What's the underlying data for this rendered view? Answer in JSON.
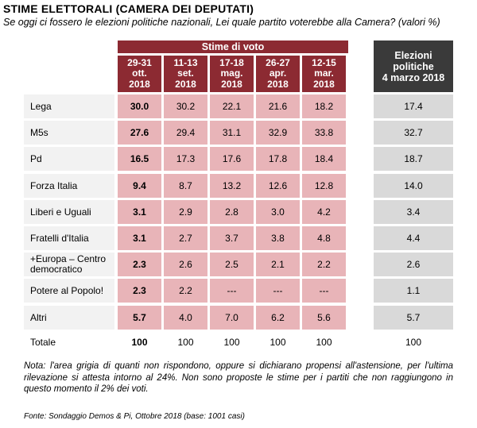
{
  "title": "STIME ELETTORALI (CAMERA DEI DEPUTATI)",
  "question": "Se oggi ci fossero le elezioni politiche nazionali, Lei quale partito voterebbe alla Camera?  (valori %)",
  "group_header": "Stime di voto",
  "columns": [
    [
      "29-31",
      "ott.",
      "2018"
    ],
    [
      "11-13",
      "set.",
      "2018"
    ],
    [
      "17-18",
      "mag.",
      "2018"
    ],
    [
      "26-27",
      "apr.",
      "2018"
    ],
    [
      "12-15",
      "mar.",
      "2018"
    ]
  ],
  "elections_header": [
    "Elezioni",
    "politiche",
    "4 marzo 2018"
  ],
  "rows": [
    {
      "label": "Lega",
      "values": [
        "30.0",
        "30.2",
        "22.1",
        "21.6",
        "18.2"
      ],
      "elections": "17.4"
    },
    {
      "label": "M5s",
      "values": [
        "27.6",
        "29.4",
        "31.1",
        "32.9",
        "33.8"
      ],
      "elections": "32.7"
    },
    {
      "label": "Pd",
      "values": [
        "16.5",
        "17.3",
        "17.6",
        "17.8",
        "18.4"
      ],
      "elections": "18.7"
    },
    {
      "label": "Forza Italia",
      "values": [
        "9.4",
        "8.7",
        "13.2",
        "12.6",
        "12.8"
      ],
      "elections": "14.0"
    },
    {
      "label": "Liberi e Uguali",
      "values": [
        "3.1",
        "2.9",
        "2.8",
        "3.0",
        "4.2"
      ],
      "elections": "3.4"
    },
    {
      "label": "Fratelli d'Italia",
      "values": [
        "3.1",
        "2.7",
        "3.7",
        "3.8",
        "4.8"
      ],
      "elections": "4.4"
    },
    {
      "label": "+Europa – Centro democratico",
      "values": [
        "2.3",
        "2.6",
        "2.5",
        "2.1",
        "2.2"
      ],
      "elections": "2.6"
    },
    {
      "label": "Potere al Popolo!",
      "values": [
        "2.3",
        "2.2",
        "---",
        "---",
        "---"
      ],
      "elections": "1.1"
    },
    {
      "label": "Altri",
      "values": [
        "5.7",
        "4.0",
        "7.0",
        "6.2",
        "5.6"
      ],
      "elections": "5.7"
    }
  ],
  "total": {
    "label": "Totale",
    "values": [
      "100",
      "100",
      "100",
      "100",
      "100"
    ],
    "elections": "100"
  },
  "note": "Nota: l'area grigia di quanti non rispondono, oppure si dichiarano propensi all'astensione, per l'ultima rilevazione si attesta intorno al 24%. Non sono proposte le stime per i partiti che non raggiungono in questo momento il 2% dei voti.",
  "source": "Fonte: Sondaggio Demos & Pi, Ottobre 2018 (base: 1001 casi)"
}
